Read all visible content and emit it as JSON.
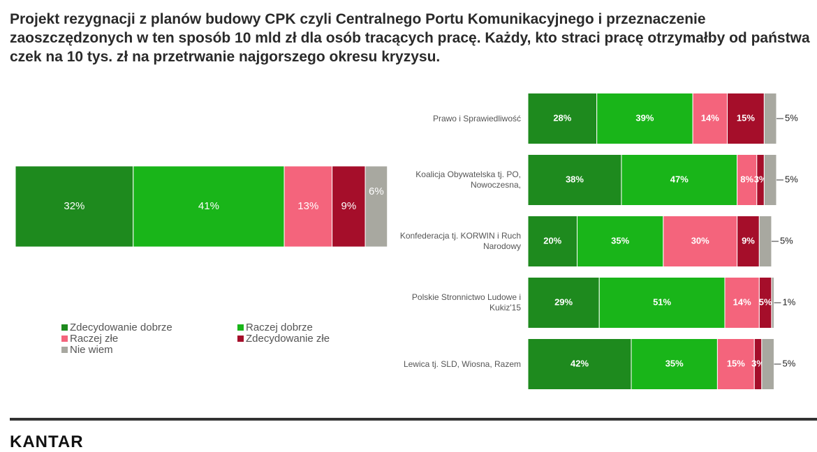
{
  "title": "Projekt rezygnacji z planów budowy CPK czyli Centralnego Portu Komunikacyjnego i przeznaczenie zaoszczędzonych w ten sposób 10 mld zł dla osób tracących pracę. Każdy, kto straci pracę otrzymałby od państwa czek na 10 tys. zł na przetrwanie najgorszego okresu kryzysu.",
  "chart_data": [
    {
      "type": "bar",
      "orientation": "horizontal",
      "stacked": true,
      "categories": [
        null
      ],
      "xlim": [
        0,
        102
      ],
      "series": [
        {
          "name": "Zdecydowanie dobrze",
          "color": "#1e8a1e",
          "values": [
            32
          ],
          "value_labels": [
            "32%"
          ]
        },
        {
          "name": "Raczej dobrze",
          "color": "#19b519",
          "values": [
            41
          ],
          "value_labels": [
            "41%"
          ]
        },
        {
          "name": "Raczej złe",
          "color": "#f4647c",
          "values": [
            13
          ],
          "value_labels": [
            "13%"
          ]
        },
        {
          "name": "Zdecydowanie złe",
          "color": "#a50e2a",
          "values": [
            9
          ],
          "value_labels": [
            "9%"
          ]
        },
        {
          "name": "Nie wiem",
          "color": "#a8a8a0",
          "values": [
            6
          ],
          "value_labels": [
            "6%"
          ]
        }
      ]
    },
    {
      "type": "bar",
      "orientation": "horizontal",
      "stacked": true,
      "xlim": [
        0,
        101
      ],
      "categories": [
        "Prawo i Sprawiedliwość",
        "Koalicja Obywatelska tj. PO, Nowoczesna,",
        "Konfederacja tj. KORWIN i Ruch Narodowy",
        "Polskie Stronnictwo Ludowe i Kukiz'15",
        "Lewica tj. SLD, Wiosna, Razem"
      ],
      "series": [
        {
          "color": "#1e8a1e",
          "values": [
            28,
            38,
            20,
            29,
            42
          ],
          "value_labels": [
            "28%",
            "38%",
            "20%",
            "29%",
            "42%"
          ]
        },
        {
          "color": "#19b519",
          "values": [
            39,
            47,
            35,
            51,
            35
          ],
          "value_labels": [
            "39%",
            "47%",
            "35%",
            "51%",
            "35%"
          ]
        },
        {
          "color": "#f4647c",
          "values": [
            14,
            8,
            30,
            14,
            15
          ],
          "value_labels": [
            "14%",
            "8%",
            "30%",
            "14%",
            "15%"
          ]
        },
        {
          "color": "#a50e2a",
          "values": [
            15,
            3,
            9,
            5,
            3
          ],
          "value_labels": [
            "15%",
            "3%",
            "9%",
            "5%",
            "3%"
          ]
        },
        {
          "color": "#a8a8a0",
          "values": [
            5,
            5,
            5,
            1,
            5
          ],
          "value_labels": [
            "5%",
            "5%",
            "5%",
            "1%",
            "5%"
          ]
        }
      ]
    }
  ],
  "footer": {
    "logo": "KANTAR"
  }
}
